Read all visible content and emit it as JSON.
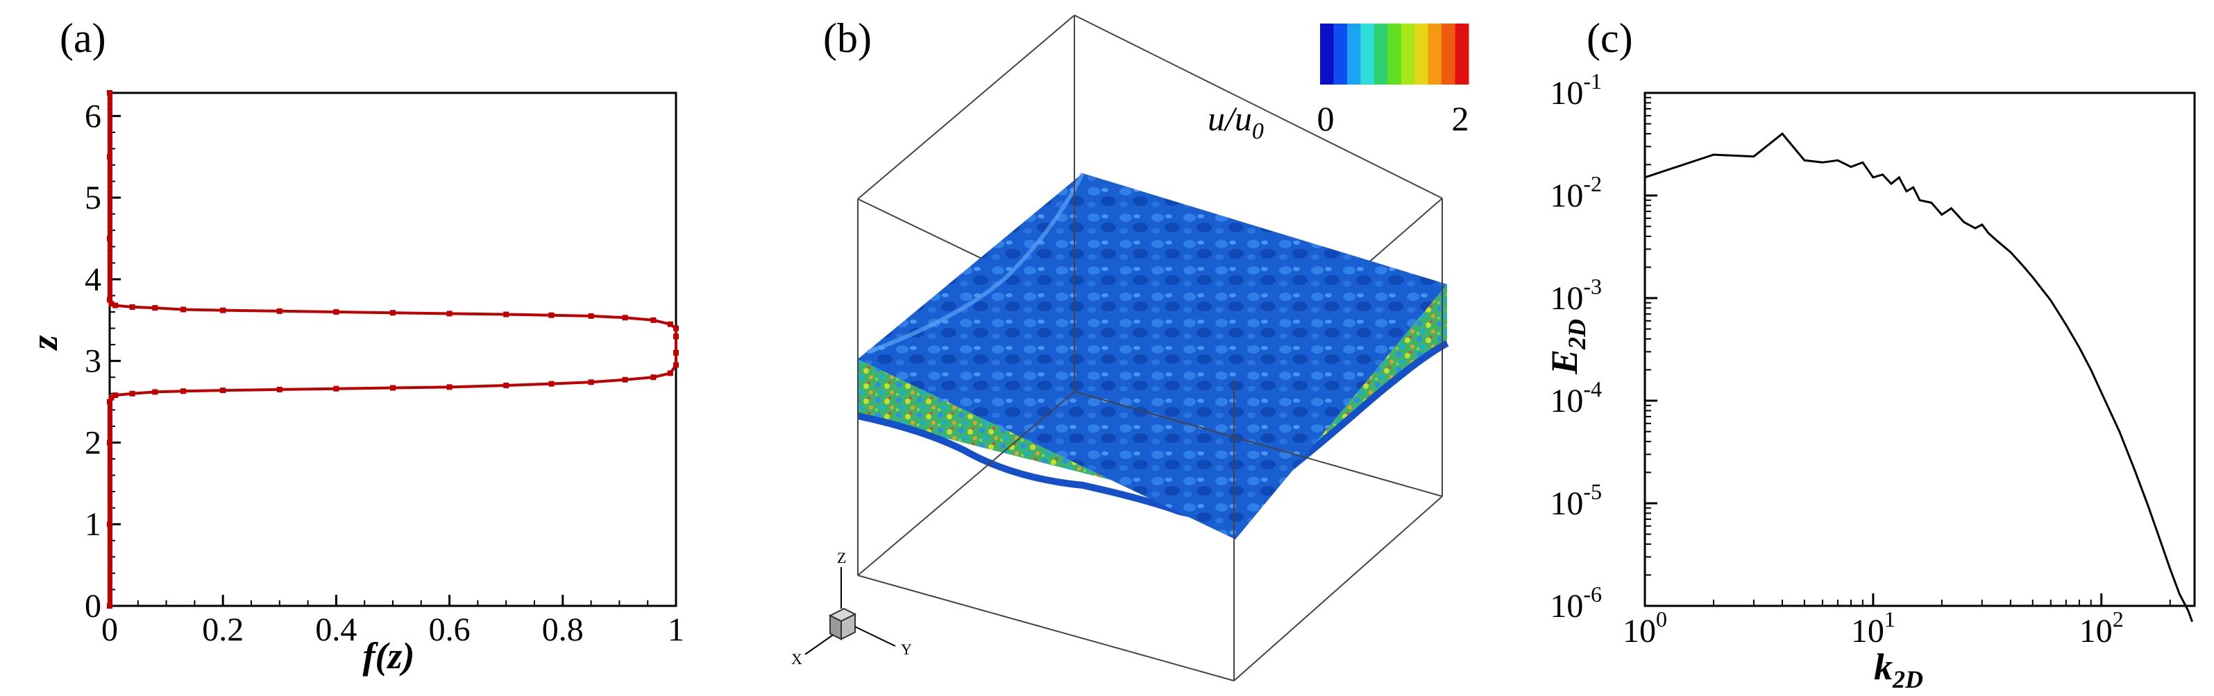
{
  "panels": {
    "a": {
      "label": "(a)"
    },
    "b": {
      "label": "(b)"
    },
    "c": {
      "label": "(c)"
    }
  },
  "colors": {
    "profile_line": "#c00000",
    "spectrum_line": "#000000",
    "axes": "#000000",
    "slab_top": "#1a63d6",
    "slab_side_base": "#3fae6a"
  },
  "chart_data": [
    {
      "panel": "a",
      "type": "line",
      "xlabel": "f(z)",
      "ylabel": "z",
      "xlim": [
        0,
        1
      ],
      "ylim": [
        0,
        6.283
      ],
      "xticks": [
        0,
        0.2,
        0.4,
        0.6,
        0.8,
        1
      ],
      "xtick_labels": [
        "0",
        "0.2",
        "0.4",
        "0.6",
        "0.8",
        "1"
      ],
      "yticks": [
        0,
        1,
        2,
        3,
        4,
        5,
        6
      ],
      "ytick_labels": [
        "0",
        "1",
        "2",
        "3",
        "4",
        "5",
        "6"
      ],
      "grid": false,
      "series": [
        {
          "x": [
            0,
            0,
            0,
            0,
            0.003,
            0.01,
            0.04,
            0.08,
            0.13,
            0.2,
            0.3,
            0.4,
            0.5,
            0.6,
            0.7,
            0.78,
            0.85,
            0.91,
            0.96,
            0.99,
            1,
            1,
            1,
            1,
            0.99,
            0.96,
            0.91,
            0.85,
            0.78,
            0.7,
            0.6,
            0.5,
            0.4,
            0.3,
            0.2,
            0.13,
            0.08,
            0.04,
            0.01,
            0.003,
            0,
            0,
            0,
            0
          ],
          "y": [
            0,
            1.0,
            2.0,
            2.5,
            2.55,
            2.58,
            2.6,
            2.62,
            2.63,
            2.64,
            2.65,
            2.66,
            2.67,
            2.68,
            2.7,
            2.72,
            2.74,
            2.77,
            2.8,
            2.85,
            2.95,
            3.1,
            3.3,
            3.4,
            3.45,
            3.5,
            3.53,
            3.55,
            3.56,
            3.57,
            3.58,
            3.59,
            3.6,
            3.61,
            3.62,
            3.63,
            3.65,
            3.66,
            3.68,
            3.7,
            3.75,
            4.5,
            5.5,
            6.283
          ]
        }
      ]
    },
    {
      "panel": "c",
      "type": "line",
      "xlabel": "k2D",
      "ylabel": "E2D",
      "xscale": "log",
      "yscale": "log",
      "xlim": [
        1,
        256
      ],
      "ylim": [
        1e-06,
        0.1
      ],
      "xtick_labels": [
        {
          "base": "10",
          "exp": "0"
        },
        {
          "base": "10",
          "exp": "1"
        },
        {
          "base": "10",
          "exp": "2"
        }
      ],
      "ytick_labels": [
        {
          "base": "10",
          "exp": "-6"
        },
        {
          "base": "10",
          "exp": "-5"
        },
        {
          "base": "10",
          "exp": "-4"
        },
        {
          "base": "10",
          "exp": "-3"
        },
        {
          "base": "10",
          "exp": "-2"
        },
        {
          "base": "10",
          "exp": "-1"
        }
      ],
      "grid": false,
      "series": [
        {
          "x": [
            1,
            2,
            3,
            4,
            5,
            6,
            7,
            8,
            9,
            10,
            11,
            12,
            13,
            14,
            15,
            16,
            18,
            20,
            22,
            25,
            28,
            30,
            32,
            35,
            40,
            45,
            50,
            60,
            70,
            80,
            90,
            100,
            120,
            140,
            160,
            180,
            200,
            220,
            240,
            250
          ],
          "y": [
            0.015,
            0.025,
            0.024,
            0.04,
            0.022,
            0.021,
            0.022,
            0.019,
            0.021,
            0.015,
            0.016,
            0.013,
            0.015,
            0.011,
            0.012,
            0.009,
            0.0085,
            0.0065,
            0.0075,
            0.0055,
            0.0048,
            0.0052,
            0.0043,
            0.0036,
            0.0028,
            0.0021,
            0.0016,
            0.00095,
            0.00055,
            0.00033,
            0.0002,
            0.00012,
            5e-05,
            2.1e-05,
            9.5e-06,
            4.5e-06,
            2.3e-06,
            1.3e-06,
            9e-07,
            7e-07
          ]
        }
      ]
    }
  ],
  "panel_b": {
    "colorbar": {
      "label_main": "u/u",
      "label_sub": "0",
      "min_label": "0",
      "max_label": "2",
      "colors": [
        "#0a10c8",
        "#0e4ef0",
        "#1aa4f2",
        "#2fdcd8",
        "#2fd070",
        "#5fdf1f",
        "#a8e61a",
        "#e6d416",
        "#f49a10",
        "#f05a10",
        "#e01010"
      ]
    },
    "triad": {
      "x": "X",
      "y": "Y",
      "z": "Z"
    }
  }
}
